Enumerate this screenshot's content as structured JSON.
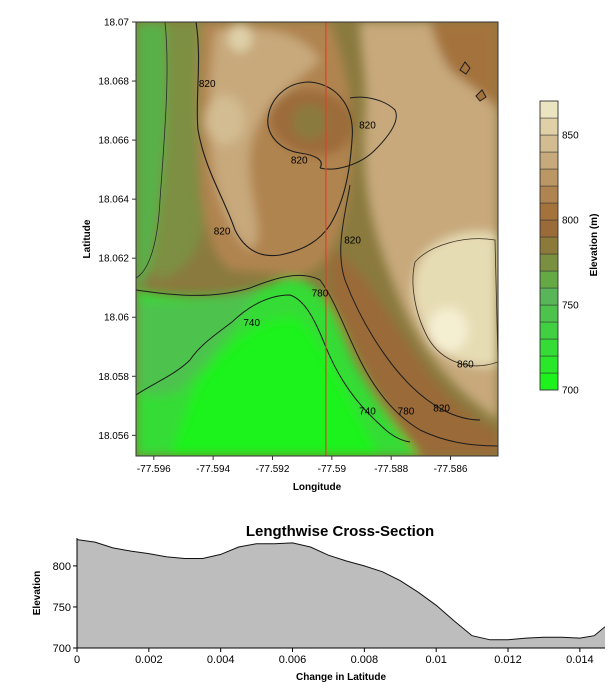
{
  "chart_data": [
    {
      "type": "heatmap",
      "subtype": "filled-contour-map",
      "title": "",
      "xlabel": "Longitude",
      "ylabel": "Latitude",
      "xlim": [
        -77.5966,
        -77.5844
      ],
      "ylim": [
        18.0553,
        18.07
      ],
      "x_ticks": [
        -77.596,
        -77.594,
        -77.592,
        -77.59,
        -77.588,
        -77.586
      ],
      "x_tick_labels": [
        "-77.596",
        "-77.594",
        "-77.592",
        "-77.59",
        "-77.588",
        "-77.586"
      ],
      "y_ticks": [
        18.056,
        18.058,
        18.06,
        18.062,
        18.064,
        18.066,
        18.068,
        18.07
      ],
      "y_tick_labels": [
        "18.056",
        "18.058",
        "18.06",
        "18.062",
        "18.064",
        "18.066",
        "18.068",
        "18.07"
      ],
      "z_levels": [
        700,
        710,
        720,
        730,
        740,
        750,
        760,
        770,
        780,
        790,
        800,
        810,
        820,
        830,
        840,
        850,
        860,
        870
      ],
      "colorbar_label": "Elevation (m)",
      "colorbar_ticks": [
        700,
        750,
        800,
        850
      ],
      "colorbar_tick_labels": [
        "700",
        "750",
        "800",
        "850"
      ],
      "colorbar_colors": [
        "#1df21d",
        "#2ae72a",
        "#36dc36",
        "#41d041",
        "#4dc24d",
        "#58b658",
        "#64a944",
        "#7a9040",
        "#8b7a3a",
        "#9a6a38",
        "#a4733c",
        "#b08450",
        "#bb9766",
        "#c7a97b",
        "#d3bc91",
        "#dfd0a8",
        "#ebe4c1",
        "#f7f3d9"
      ],
      "cross_section_longitude": -77.5902,
      "cross_section_color": "#e0402a",
      "contour_labels": [
        {
          "text": "820",
          "lon": -77.5942,
          "lat": 18.0678
        },
        {
          "text": "820",
          "lon": -77.5888,
          "lat": 18.0664
        },
        {
          "text": "820",
          "lon": -77.5911,
          "lat": 18.0652
        },
        {
          "text": "820",
          "lon": -77.5937,
          "lat": 18.0628
        },
        {
          "text": "820",
          "lon": -77.5893,
          "lat": 18.0625
        },
        {
          "text": "780",
          "lon": -77.5904,
          "lat": 18.0607
        },
        {
          "text": "740",
          "lon": -77.5927,
          "lat": 18.0597
        },
        {
          "text": "860",
          "lon": -77.5855,
          "lat": 18.0583
        },
        {
          "text": "740",
          "lon": -77.5888,
          "lat": 18.0567
        },
        {
          "text": "780",
          "lon": -77.5875,
          "lat": 18.0567
        },
        {
          "text": "820",
          "lon": -77.5863,
          "lat": 18.0568
        }
      ]
    },
    {
      "type": "area",
      "title": "Lengthwise Cross-Section",
      "xlabel": "Change in Latitude",
      "ylabel": "Elevation",
      "xlim": [
        0,
        0.0147
      ],
      "ylim": [
        700,
        834
      ],
      "x_ticks": [
        0,
        0.002,
        0.004,
        0.006,
        0.008,
        0.01,
        0.012,
        0.014
      ],
      "x_tick_labels": [
        "0",
        "0.002",
        "0.004",
        "0.006",
        "0.008",
        "0.01",
        "0.012",
        "0.014"
      ],
      "y_ticks": [
        700,
        750,
        800
      ],
      "y_tick_labels": [
        "700",
        "750",
        "800"
      ],
      "fill_color": "#bdbdbd",
      "x": [
        0,
        0.0005,
        0.001,
        0.0015,
        0.002,
        0.0025,
        0.003,
        0.0035,
        0.004,
        0.0045,
        0.005,
        0.0055,
        0.006,
        0.0065,
        0.007,
        0.0075,
        0.008,
        0.0085,
        0.009,
        0.0095,
        0.01,
        0.0105,
        0.011,
        0.0115,
        0.012,
        0.0125,
        0.013,
        0.0135,
        0.014,
        0.0144,
        0.0147
      ],
      "y": [
        832,
        829,
        822,
        818,
        815,
        811,
        809,
        809,
        814,
        823,
        827,
        827,
        828,
        823,
        813,
        806,
        800,
        793,
        782,
        768,
        752,
        733,
        715,
        710,
        710,
        712,
        713,
        713,
        712,
        715,
        726
      ]
    }
  ]
}
